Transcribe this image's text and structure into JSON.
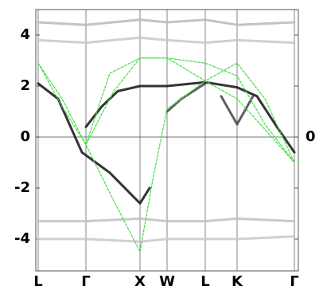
{
  "chart_data": {
    "type": "line",
    "xlim": [
      -0.03,
      3.27
    ],
    "ylim": [
      -5.25,
      5
    ],
    "y2lim": [
      -5.25,
      5
    ],
    "xticks": [
      {
        "value": 0,
        "label": "L"
      },
      {
        "value": 0.6,
        "label": "Γ"
      },
      {
        "value": 1.28,
        "label": "X"
      },
      {
        "value": 1.62,
        "label": "W"
      },
      {
        "value": 2.1,
        "label": "L"
      },
      {
        "value": 2.5,
        "label": "K"
      },
      {
        "value": 3.22,
        "label": "Γ"
      }
    ],
    "yticks": [
      -4,
      -2,
      0,
      2,
      4
    ],
    "y2ticks": [
      0
    ],
    "grid": true,
    "series": [
      {
        "color": "#b8b8b8",
        "style": "solid",
        "x": [
          0,
          0.6,
          1.28,
          1.62,
          2.1,
          2.5,
          3.22
        ],
        "values": [
          4.5,
          4.4,
          4.6,
          4.5,
          4.6,
          4.4,
          4.5
        ]
      },
      {
        "color": "#c8c8c8",
        "style": "solid",
        "x": [
          0,
          0.6,
          1.28,
          1.62,
          2.1,
          2.5,
          3.22
        ],
        "values": [
          3.8,
          3.7,
          3.9,
          3.8,
          3.7,
          3.8,
          3.7
        ]
      },
      {
        "color": "#c0c0c0",
        "style": "solid",
        "x": [
          0,
          0.6,
          1.28,
          1.62,
          2.1,
          2.5,
          3.22
        ],
        "values": [
          -3.3,
          -3.3,
          -3.2,
          -3.3,
          -3.3,
          -3.2,
          -3.3
        ]
      },
      {
        "color": "#c8c8c8",
        "style": "solid",
        "x": [
          0,
          0.6,
          1.28,
          1.62,
          2.1,
          2.5,
          3.22
        ],
        "values": [
          -4.0,
          -4.0,
          -4.1,
          -4.0,
          -4.0,
          -4.0,
          -3.9
        ]
      },
      {
        "color": "#111111",
        "style": "solid",
        "x": [
          0,
          0.25,
          0.55,
          0.9,
          1.28,
          1.4
        ],
        "values": [
          2.1,
          1.5,
          -0.6,
          -1.4,
          -2.6,
          -2.0
        ]
      },
      {
        "color": "#111111",
        "style": "solid",
        "x": [
          0.6,
          0.8,
          1.0,
          1.28,
          1.62,
          2.1,
          2.5,
          2.75,
          3.0,
          3.22
        ],
        "values": [
          0.4,
          1.2,
          1.8,
          2.0,
          2.0,
          2.15,
          1.95,
          1.6,
          0.4,
          -0.6
        ]
      },
      {
        "color": "#444444",
        "style": "solid",
        "x": [
          1.62,
          1.8,
          2.1
        ],
        "values": [
          1.0,
          1.5,
          2.1
        ]
      },
      {
        "color": "#444444",
        "style": "solid",
        "x": [
          2.3,
          2.5,
          2.7
        ],
        "values": [
          1.6,
          0.5,
          1.6
        ]
      },
      {
        "color": "#44dd44",
        "style": "dashed",
        "x": [
          0,
          0.3,
          0.6,
          0.95,
          1.28,
          1.45,
          1.62,
          2.1,
          2.5,
          2.85,
          3.22
        ],
        "values": [
          2.9,
          1.2,
          -0.3,
          -2.5,
          -4.5,
          -1.5,
          1.1,
          2.2,
          1.5,
          0.3,
          -1.0
        ]
      },
      {
        "color": "#44dd44",
        "style": "dashed",
        "x": [
          0,
          0.3,
          0.6,
          0.95,
          1.28,
          1.62,
          2.1,
          2.5,
          2.85,
          3.22
        ],
        "values": [
          2.9,
          1.5,
          -0.3,
          1.8,
          3.1,
          3.1,
          2.2,
          2.9,
          1.5,
          -1.0
        ]
      },
      {
        "color": "#44dd44",
        "style": "dashed",
        "x": [
          0.6,
          0.9,
          1.28,
          1.62,
          2.1,
          2.5,
          2.85,
          3.22
        ],
        "values": [
          -0.3,
          2.5,
          3.1,
          3.1,
          2.9,
          2.4,
          0.5,
          -1.0
        ]
      }
    ]
  }
}
